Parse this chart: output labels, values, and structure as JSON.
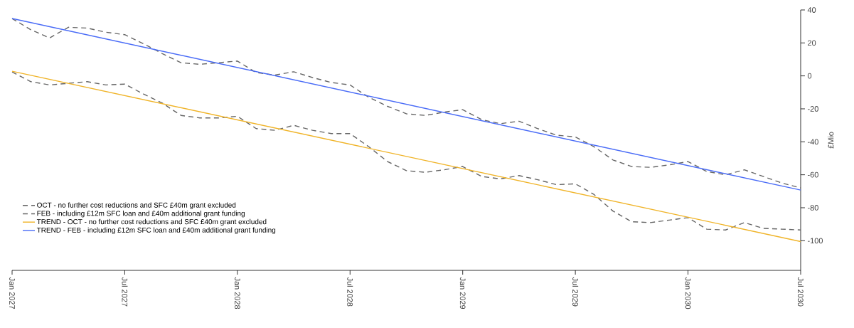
{
  "chart_data": {
    "type": "line",
    "ylabel": "£Mio",
    "x": [
      "2027-01",
      "2027-02",
      "2027-03",
      "2027-04",
      "2027-05",
      "2027-06",
      "2027-07",
      "2027-08",
      "2027-09",
      "2027-10",
      "2027-11",
      "2027-12",
      "2028-01",
      "2028-02",
      "2028-03",
      "2028-04",
      "2028-05",
      "2028-06",
      "2028-07",
      "2028-08",
      "2028-09",
      "2028-10",
      "2028-11",
      "2028-12",
      "2029-01",
      "2029-02",
      "2029-03",
      "2029-04",
      "2029-05",
      "2029-06",
      "2029-07",
      "2029-08",
      "2029-09",
      "2029-10",
      "2029-11",
      "2029-12",
      "2030-01",
      "2030-02",
      "2030-03",
      "2030-04",
      "2030-05",
      "2030-06",
      "2030-07"
    ],
    "series": [
      {
        "name": "OCT - no further cost reductions and SFC £40m grant excluded",
        "color": "#666666",
        "line_style": "dashed",
        "values": [
          2.4,
          -3.5,
          -5.5,
          -4.5,
          -3.5,
          -5.5,
          -5,
          -11,
          -16.5,
          -24,
          -25.5,
          -25.5,
          -24.5,
          -32,
          -33,
          -30,
          -33,
          -35,
          -35,
          -43,
          -52,
          -57.5,
          -58.5,
          -57,
          -55,
          -61,
          -62.5,
          -60.5,
          -63,
          -66,
          -65.5,
          -72,
          -82,
          -88.5,
          -89,
          -87.5,
          -86,
          -93,
          -93.5,
          -89,
          -92.5,
          -93,
          -93.5
        ]
      },
      {
        "name": "FEB - including £12m SFC loan and £40m additional grant funding",
        "color": "#666666",
        "line_style": "dashed",
        "values": [
          34.8,
          28,
          23,
          29.5,
          29,
          26.5,
          25,
          19.5,
          13.5,
          8,
          7,
          8,
          9,
          2,
          0.5,
          2.5,
          -1,
          -4,
          -5.5,
          -13,
          -18.5,
          -23,
          -24,
          -22,
          -20.5,
          -26.5,
          -29,
          -27.5,
          -32,
          -36,
          -37,
          -43,
          -51,
          -55,
          -55.5,
          -54,
          -52,
          -58,
          -60,
          -57,
          -61,
          -65,
          -68
        ]
      },
      {
        "name": "TREND - OCT - no further cost reductions and SFC £40m grant excluded",
        "color": "#f0b429",
        "line_style": "solid",
        "x": [
          "2027-01",
          "2030-07"
        ],
        "values": [
          2.8,
          -100.5
        ]
      },
      {
        "name": "TREND - FEB - including £12m SFC loan and £40m additional grant funding",
        "color": "#4a6cf7",
        "line_style": "solid",
        "x": [
          "2027-01",
          "2030-07"
        ],
        "values": [
          34.8,
          -69.3
        ]
      }
    ],
    "xlim": [
      "2027-01",
      "2030-07"
    ],
    "xticks": [
      {
        "value": "2027-01",
        "label": "Jan 2027"
      },
      {
        "value": "2027-07",
        "label": "Jul 2027"
      },
      {
        "value": "2028-01",
        "label": "Jan 2028"
      },
      {
        "value": "2028-07",
        "label": "Jul 2028"
      },
      {
        "value": "2029-01",
        "label": "Jan 2029"
      },
      {
        "value": "2029-07",
        "label": "Jul 2029"
      },
      {
        "value": "2030-01",
        "label": "Jan 2030"
      },
      {
        "value": "2030-07",
        "label": "Jul 2030"
      }
    ],
    "ylim": [
      -118,
      40
    ],
    "yticks": [
      -100,
      -80,
      -60,
      -40,
      -20,
      0,
      20,
      40
    ],
    "legend": "bottom left",
    "grid": false
  }
}
